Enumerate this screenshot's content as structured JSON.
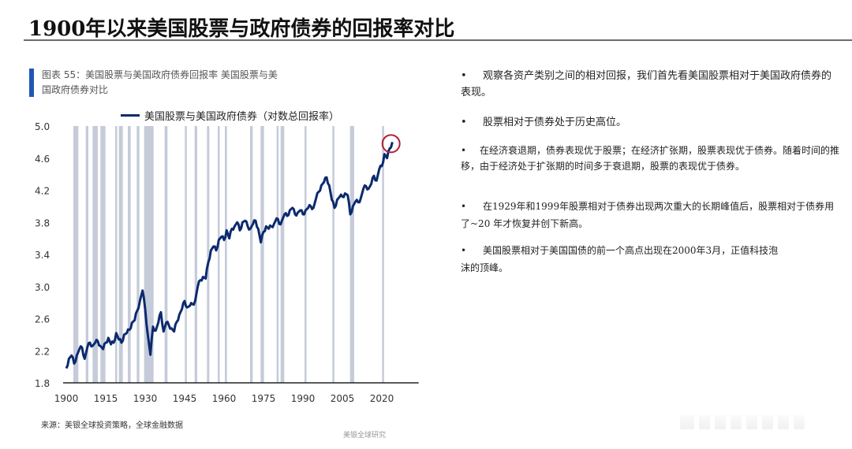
{
  "page": {
    "title": "1900年以来美国股票与政府债券的回报率对比"
  },
  "chart_caption": {
    "text": "图表 55：美国股票与美国政府债券回报率 美国股票与美国政府债券对比"
  },
  "legend": {
    "label": "美国股票与美国政府债券（对数总回报率）"
  },
  "source": "来源：美银全球投资策略，全球金融数据",
  "footer": "美银全球研究",
  "bullets": [
    "观察各资产类别之间的相对回报，我们首先看美国股票相对于美国政府债券的表现。",
    "股票相对于债券处于历史高位。",
    "在经济衰退期，债券表现优于股票；在经济扩张期，股票表现优于债券。随着时间的推移，由于经济处于扩张期的时间多于衰退期，股票的表现优于债券。",
    "在1929年和1999年股票相对于债券出现两次重大的长期峰值后，股票相对于债券用了~20 年才恢复并创下新高。",
    "美国股票相对于美国国债的前一个高点出现在2000年3月，正值科技泡沫的顶峰。"
  ],
  "colors": {
    "line": "#0c2a6e",
    "recession_shading": "#c5cbd9",
    "highlight_circle": "#b0203a",
    "caption_bar": "#1f57b5"
  },
  "chart_data": {
    "type": "line",
    "title": "美国股票与美国政府债券（对数总回报率）",
    "xlabel": "",
    "ylabel": "",
    "xlim": [
      1900,
      2024
    ],
    "ylim": [
      1.8,
      5.0
    ],
    "x_ticks": [
      1900,
      1915,
      1930,
      1945,
      1960,
      1975,
      1990,
      2005,
      2020
    ],
    "y_ticks": [
      1.8,
      2.2,
      2.6,
      3.0,
      3.4,
      3.8,
      4.2,
      4.6,
      5.0
    ],
    "grid": false,
    "legend_position": "top",
    "series": [
      {
        "name": "美国股票与美国政府债券（对数总回报率）",
        "x": [
          1900,
          1901,
          1902,
          1903,
          1904,
          1905,
          1906,
          1907,
          1908,
          1909,
          1910,
          1911,
          1912,
          1913,
          1914,
          1915,
          1916,
          1917,
          1918,
          1919,
          1920,
          1921,
          1922,
          1923,
          1924,
          1925,
          1926,
          1927,
          1928,
          1929,
          1930,
          1931,
          1932,
          1933,
          1934,
          1935,
          1936,
          1937,
          1938,
          1939,
          1940,
          1941,
          1942,
          1943,
          1944,
          1945,
          1946,
          1947,
          1948,
          1949,
          1950,
          1951,
          1952,
          1953,
          1954,
          1955,
          1956,
          1957,
          1958,
          1959,
          1960,
          1961,
          1962,
          1963,
          1964,
          1965,
          1966,
          1967,
          1968,
          1969,
          1970,
          1971,
          1972,
          1973,
          1974,
          1975,
          1976,
          1977,
          1978,
          1979,
          1980,
          1981,
          1982,
          1983,
          1984,
          1985,
          1986,
          1987,
          1988,
          1989,
          1990,
          1991,
          1992,
          1993,
          1994,
          1995,
          1996,
          1997,
          1998,
          1999,
          2000,
          2001,
          2002,
          2003,
          2004,
          2005,
          2006,
          2007,
          2008,
          2009,
          2010,
          2011,
          2012,
          2013,
          2014,
          2015,
          2016,
          2017,
          2018,
          2019,
          2020,
          2021,
          2022,
          2023,
          2024
        ],
        "values": [
          1.98,
          2.1,
          2.14,
          2.04,
          2.14,
          2.22,
          2.24,
          2.1,
          2.24,
          2.3,
          2.26,
          2.3,
          2.32,
          2.26,
          2.22,
          2.3,
          2.36,
          2.28,
          2.3,
          2.42,
          2.34,
          2.3,
          2.4,
          2.42,
          2.46,
          2.55,
          2.58,
          2.7,
          2.82,
          2.95,
          2.72,
          2.4,
          2.15,
          2.5,
          2.45,
          2.55,
          2.68,
          2.44,
          2.55,
          2.52,
          2.48,
          2.44,
          2.56,
          2.65,
          2.72,
          2.82,
          2.74,
          2.76,
          2.78,
          2.82,
          3.0,
          3.08,
          3.12,
          3.1,
          3.3,
          3.45,
          3.5,
          3.45,
          3.58,
          3.62,
          3.58,
          3.7,
          3.6,
          3.72,
          3.75,
          3.8,
          3.7,
          3.8,
          3.82,
          3.75,
          3.72,
          3.78,
          3.82,
          3.72,
          3.55,
          3.68,
          3.75,
          3.72,
          3.75,
          3.78,
          3.85,
          3.78,
          3.82,
          3.9,
          3.88,
          3.95,
          3.98,
          3.9,
          3.92,
          3.95,
          3.9,
          3.95,
          3.98,
          4.0,
          3.98,
          4.1,
          4.18,
          4.26,
          4.3,
          4.36,
          4.26,
          4.08,
          3.98,
          4.08,
          4.12,
          4.12,
          4.16,
          4.14,
          3.9,
          4.0,
          4.06,
          4.05,
          4.1,
          4.22,
          4.25,
          4.22,
          4.28,
          4.38,
          4.32,
          4.46,
          4.5,
          4.65,
          4.6,
          4.72,
          4.8
        ]
      }
    ],
    "recession_periods": [
      [
        1902.7,
        1904.6
      ],
      [
        1907.4,
        1908.4
      ],
      [
        1910.0,
        1912.0
      ],
      [
        1913.0,
        1914.9
      ],
      [
        1918.6,
        1919.2
      ],
      [
        1920.0,
        1921.5
      ],
      [
        1923.4,
        1924.5
      ],
      [
        1926.8,
        1927.8
      ],
      [
        1929.6,
        1933.2
      ],
      [
        1937.4,
        1938.5
      ],
      [
        1945.1,
        1945.8
      ],
      [
        1948.8,
        1949.8
      ],
      [
        1953.5,
        1954.4
      ],
      [
        1957.6,
        1958.3
      ],
      [
        1960.3,
        1961.1
      ],
      [
        1969.9,
        1970.9
      ],
      [
        1973.9,
        1975.2
      ],
      [
        1980.0,
        1980.5
      ],
      [
        1981.5,
        1982.9
      ],
      [
        1990.6,
        1991.2
      ],
      [
        2001.2,
        2001.9
      ],
      [
        2007.9,
        2009.5
      ],
      [
        2020.1,
        2020.4
      ]
    ],
    "annotations": [
      {
        "type": "circle",
        "x": 2023.5,
        "y": 4.78,
        "note": "current high highlighted"
      }
    ]
  }
}
